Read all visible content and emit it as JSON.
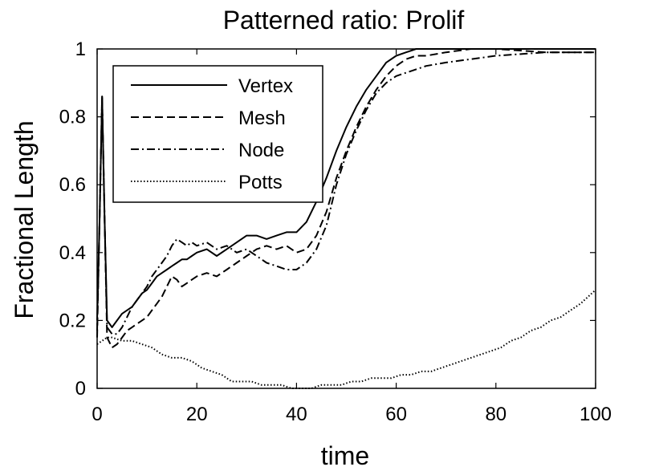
{
  "chart_data": {
    "type": "line",
    "title": "Patterned ratio: Prolif",
    "xlabel": "time",
    "ylabel": "Fractional Length",
    "xlim": [
      0,
      100
    ],
    "ylim": [
      0,
      1
    ],
    "xticks": [
      "0",
      "20",
      "40",
      "60",
      "80",
      "100"
    ],
    "yticks": [
      "0",
      "0.2",
      "0.4",
      "0.6",
      "0.8",
      "1"
    ],
    "grid": false,
    "legend": {
      "placement": "top-left",
      "boxed": true
    },
    "series": [
      {
        "name": "Vertex",
        "style": "solid",
        "x": [
          0,
          0.5,
          1,
          1.5,
          2,
          3,
          4,
          5,
          6,
          7,
          8,
          9,
          10,
          11,
          12,
          13,
          14,
          15,
          16,
          17,
          18,
          19,
          20,
          22,
          24,
          26,
          28,
          30,
          32,
          34,
          36,
          38,
          40,
          42,
          44,
          46,
          48,
          50,
          52,
          54,
          56,
          58,
          60,
          62,
          64,
          66,
          70,
          75,
          80,
          90,
          100
        ],
        "y": [
          0.2,
          0.5,
          0.86,
          0.5,
          0.2,
          0.18,
          0.2,
          0.22,
          0.23,
          0.24,
          0.26,
          0.28,
          0.29,
          0.31,
          0.33,
          0.34,
          0.35,
          0.36,
          0.37,
          0.38,
          0.38,
          0.39,
          0.4,
          0.41,
          0.39,
          0.41,
          0.43,
          0.45,
          0.45,
          0.44,
          0.45,
          0.46,
          0.46,
          0.49,
          0.55,
          0.62,
          0.7,
          0.77,
          0.83,
          0.88,
          0.92,
          0.96,
          0.98,
          0.99,
          1.0,
          1.0,
          1.0,
          1.0,
          1.0,
          1.0,
          1.0
        ]
      },
      {
        "name": "Mesh",
        "style": "dashed",
        "x": [
          0,
          0.5,
          1,
          1.5,
          2,
          3,
          4,
          5,
          6,
          7,
          8,
          9,
          10,
          11,
          12,
          13,
          14,
          15,
          16,
          17,
          18,
          19,
          20,
          22,
          24,
          26,
          28,
          30,
          32,
          34,
          36,
          38,
          40,
          42,
          44,
          46,
          48,
          50,
          52,
          54,
          56,
          58,
          60,
          62,
          64,
          66,
          70,
          75,
          80,
          90,
          100
        ],
        "y": [
          0.15,
          0.5,
          0.86,
          0.5,
          0.15,
          0.12,
          0.13,
          0.15,
          0.17,
          0.18,
          0.19,
          0.2,
          0.21,
          0.23,
          0.25,
          0.27,
          0.3,
          0.33,
          0.32,
          0.3,
          0.31,
          0.32,
          0.33,
          0.34,
          0.33,
          0.35,
          0.37,
          0.39,
          0.41,
          0.42,
          0.41,
          0.42,
          0.4,
          0.41,
          0.45,
          0.52,
          0.62,
          0.7,
          0.77,
          0.83,
          0.88,
          0.92,
          0.95,
          0.97,
          0.98,
          0.98,
          0.99,
          1.0,
          1.0,
          0.99,
          0.99
        ]
      },
      {
        "name": "Node",
        "style": "dashdot",
        "x": [
          0,
          0.5,
          1,
          1.5,
          2,
          3,
          4,
          5,
          6,
          7,
          8,
          9,
          10,
          11,
          12,
          13,
          14,
          15,
          16,
          17,
          18,
          19,
          20,
          22,
          24,
          26,
          28,
          30,
          32,
          34,
          36,
          38,
          40,
          42,
          44,
          46,
          48,
          50,
          52,
          54,
          56,
          58,
          60,
          62,
          64,
          66,
          70,
          75,
          80,
          90,
          100
        ],
        "y": [
          0.17,
          0.5,
          0.86,
          0.5,
          0.18,
          0.16,
          0.16,
          0.18,
          0.21,
          0.24,
          0.26,
          0.28,
          0.3,
          0.33,
          0.35,
          0.37,
          0.39,
          0.42,
          0.44,
          0.43,
          0.42,
          0.43,
          0.42,
          0.43,
          0.41,
          0.42,
          0.4,
          0.41,
          0.39,
          0.37,
          0.36,
          0.35,
          0.35,
          0.37,
          0.41,
          0.48,
          0.6,
          0.69,
          0.76,
          0.82,
          0.87,
          0.9,
          0.92,
          0.93,
          0.94,
          0.95,
          0.96,
          0.97,
          0.98,
          0.99,
          0.99
        ]
      },
      {
        "name": "Potts",
        "style": "dotted",
        "x": [
          0,
          1,
          2,
          3,
          5,
          7,
          9,
          11,
          13,
          15,
          17,
          19,
          21,
          23,
          25,
          27,
          29,
          31,
          33,
          35,
          37,
          39,
          41,
          43,
          45,
          47,
          49,
          51,
          53,
          55,
          57,
          59,
          61,
          63,
          65,
          67,
          69,
          71,
          73,
          75,
          77,
          79,
          81,
          83,
          85,
          87,
          89,
          91,
          93,
          95,
          97,
          100
        ],
        "y": [
          0.13,
          0.14,
          0.15,
          0.15,
          0.14,
          0.14,
          0.13,
          0.12,
          0.1,
          0.09,
          0.09,
          0.08,
          0.06,
          0.05,
          0.04,
          0.02,
          0.02,
          0.02,
          0.01,
          0.01,
          0.01,
          0.0,
          0.0,
          0.0,
          0.01,
          0.01,
          0.01,
          0.02,
          0.02,
          0.03,
          0.03,
          0.03,
          0.04,
          0.04,
          0.05,
          0.05,
          0.06,
          0.07,
          0.08,
          0.09,
          0.1,
          0.11,
          0.12,
          0.14,
          0.15,
          0.17,
          0.18,
          0.2,
          0.21,
          0.23,
          0.25,
          0.29
        ]
      }
    ]
  }
}
